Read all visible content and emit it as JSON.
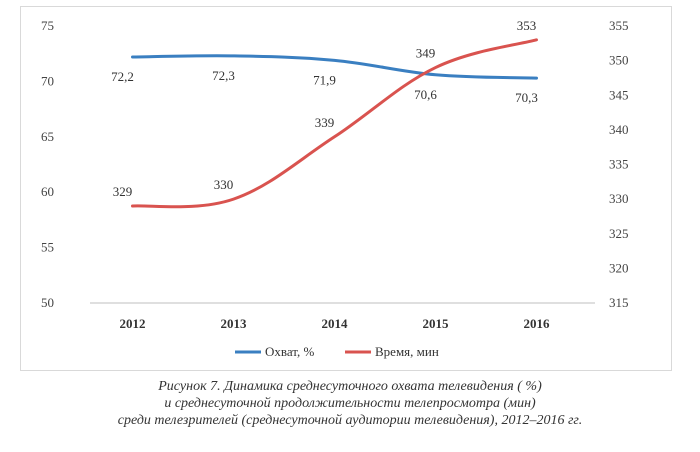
{
  "chart_data": {
    "type": "line",
    "categories": [
      "2012",
      "2013",
      "2014",
      "2015",
      "2016"
    ],
    "series": [
      {
        "name": "Охват, %",
        "axis": "left",
        "color": "#3a7fc1",
        "values": [
          72.2,
          72.3,
          71.9,
          70.6,
          70.3
        ],
        "labels": [
          "72,2",
          "72,3",
          "71,9",
          "70,6",
          "70,3"
        ]
      },
      {
        "name": "Время, мин",
        "axis": "right",
        "color": "#d9534f",
        "values": [
          329,
          330,
          339,
          349,
          353
        ],
        "labels": [
          "329",
          "330",
          "339",
          "349",
          "353"
        ]
      }
    ],
    "y_left": {
      "min": 50,
      "max": 75,
      "ticks": [
        "50",
        "55",
        "60",
        "65",
        "70",
        "75"
      ]
    },
    "y_right": {
      "min": 315,
      "max": 355,
      "ticks": [
        "315",
        "320",
        "325",
        "330",
        "335",
        "340",
        "345",
        "350",
        "355"
      ]
    },
    "legend_position": "bottom",
    "grid": false
  },
  "caption": {
    "line1": "Рисунок 7. Динамика среднесуточного охвата телевидения ( %)",
    "line2": "и среднесуточной продолжительности телепросмотра (мин)",
    "line3": "среди телезрителей (среднесуточной аудитории телевидения), 2012–2016 гг."
  }
}
